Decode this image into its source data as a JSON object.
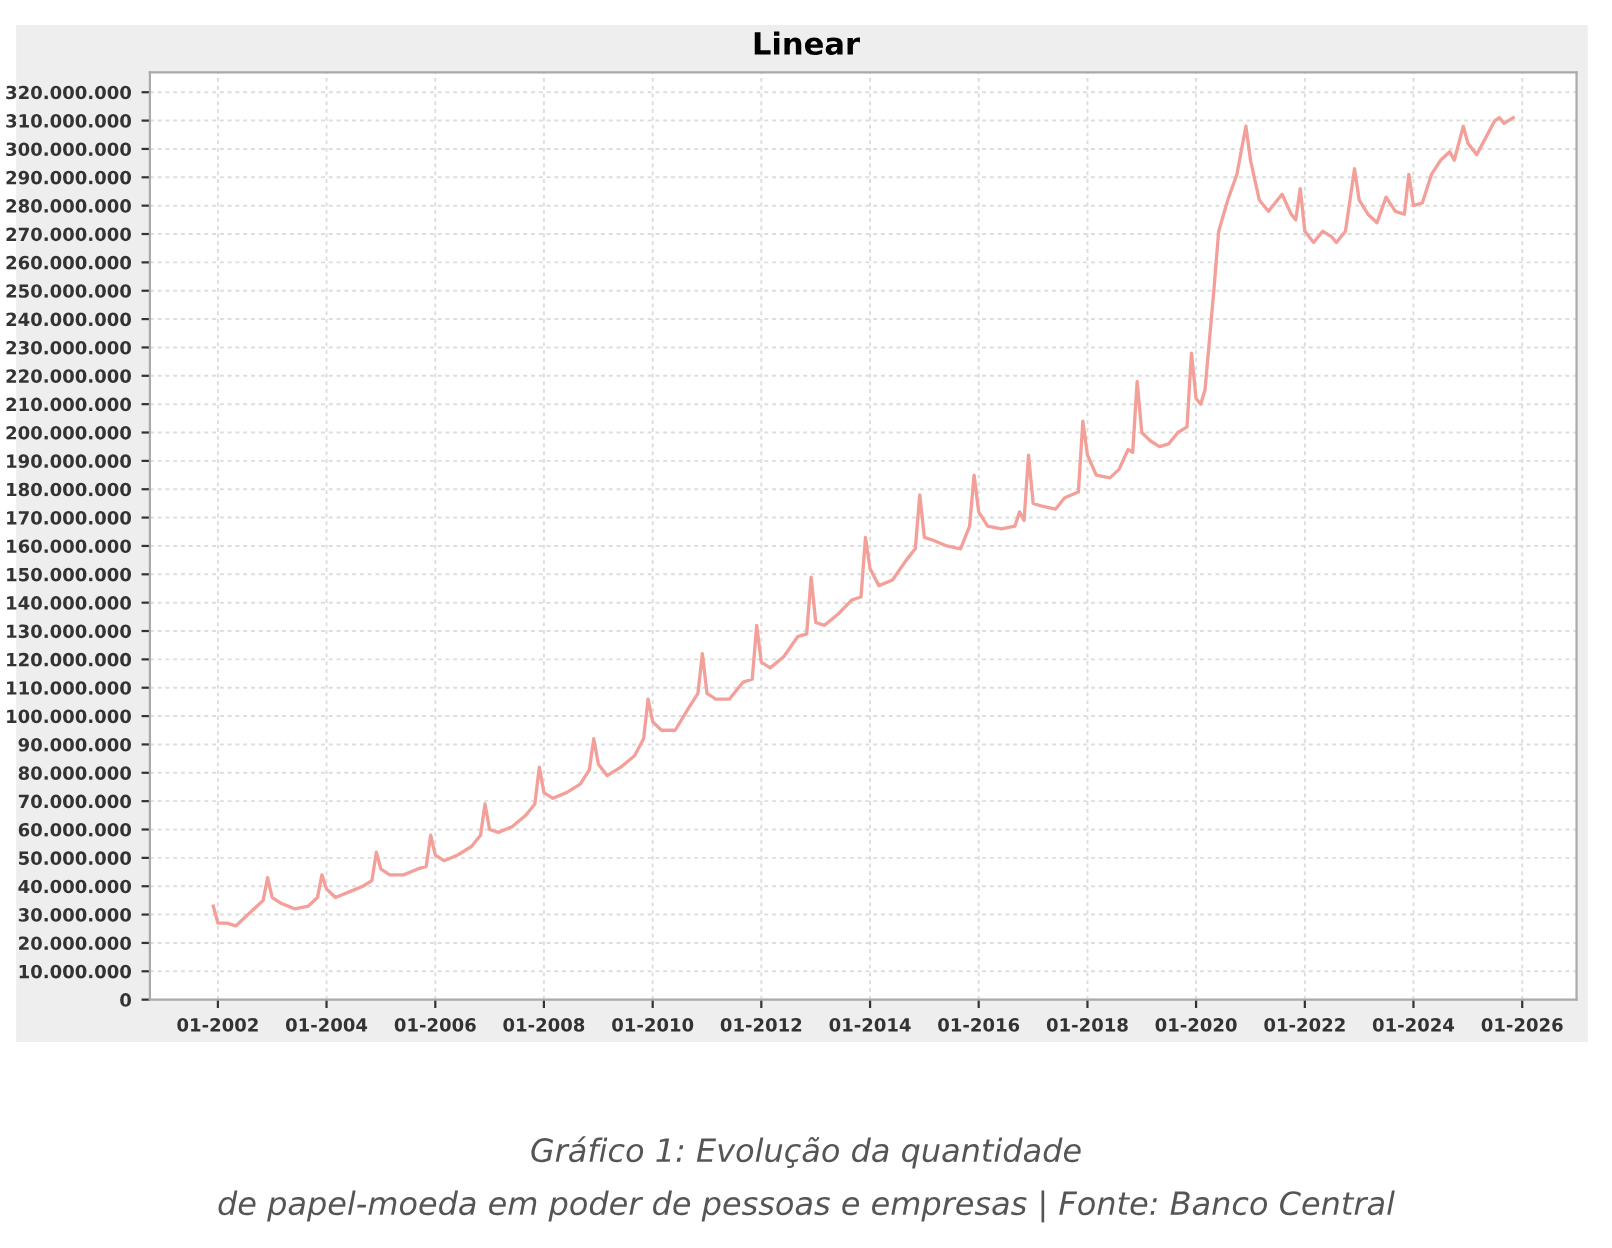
{
  "chart_data": {
    "type": "line",
    "title": "Linear",
    "x": [
      "2001-12",
      "2002-01",
      "2002-03",
      "2002-05",
      "2002-11",
      "2002-12",
      "2003-01",
      "2003-03",
      "2003-06",
      "2003-09",
      "2003-11",
      "2003-12",
      "2004-01",
      "2004-03",
      "2004-06",
      "2004-09",
      "2004-11",
      "2004-12",
      "2005-01",
      "2005-03",
      "2005-06",
      "2005-09",
      "2005-11",
      "2005-12",
      "2006-01",
      "2006-03",
      "2006-06",
      "2006-09",
      "2006-11",
      "2006-12",
      "2007-01",
      "2007-03",
      "2007-06",
      "2007-09",
      "2007-11",
      "2007-12",
      "2008-01",
      "2008-03",
      "2008-06",
      "2008-09",
      "2008-11",
      "2008-12",
      "2009-01",
      "2009-03",
      "2009-06",
      "2009-09",
      "2009-11",
      "2009-12",
      "2010-01",
      "2010-03",
      "2010-06",
      "2010-09",
      "2010-11",
      "2010-12",
      "2011-01",
      "2011-03",
      "2011-06",
      "2011-09",
      "2011-11",
      "2011-12",
      "2012-01",
      "2012-03",
      "2012-06",
      "2012-09",
      "2012-11",
      "2012-12",
      "2013-01",
      "2013-03",
      "2013-06",
      "2013-09",
      "2013-11",
      "2013-12",
      "2014-01",
      "2014-03",
      "2014-06",
      "2014-09",
      "2014-11",
      "2014-12",
      "2015-01",
      "2015-03",
      "2015-06",
      "2015-09",
      "2015-11",
      "2015-12",
      "2016-01",
      "2016-03",
      "2016-06",
      "2016-09",
      "2016-10",
      "2016-11",
      "2016-12",
      "2017-01",
      "2017-03",
      "2017-06",
      "2017-08",
      "2017-11",
      "2017-12",
      "2018-01",
      "2018-03",
      "2018-06",
      "2018-08",
      "2018-10",
      "2018-11",
      "2018-12",
      "2019-01",
      "2019-03",
      "2019-05",
      "2019-07",
      "2019-09",
      "2019-11",
      "2019-12",
      "2020-01",
      "2020-02",
      "2020-03",
      "2020-05",
      "2020-06",
      "2020-08",
      "2020-10",
      "2020-12",
      "2021-01",
      "2021-03",
      "2021-05",
      "2021-08",
      "2021-10",
      "2021-11",
      "2021-12",
      "2022-01",
      "2022-03",
      "2022-05",
      "2022-07",
      "2022-08",
      "2022-10",
      "2022-12",
      "2023-01",
      "2023-03",
      "2023-05",
      "2023-07",
      "2023-09",
      "2023-11",
      "2023-12",
      "2024-01",
      "2024-03",
      "2024-05",
      "2024-07",
      "2024-09",
      "2024-10",
      "2024-12",
      "2025-01",
      "2025-03",
      "2025-05",
      "2025-07",
      "2025-08",
      "2025-09",
      "2025-11"
    ],
    "series": [
      {
        "color": "#f4a09a",
        "values": [
          33000000,
          27000000,
          27000000,
          26000000,
          35000000,
          43000000,
          36000000,
          34000000,
          32000000,
          33000000,
          36000000,
          44000000,
          39000000,
          36000000,
          38000000,
          40000000,
          42000000,
          52000000,
          46000000,
          44000000,
          44000000,
          46000000,
          47000000,
          58000000,
          51000000,
          49000000,
          51000000,
          54000000,
          58000000,
          69000000,
          60000000,
          59000000,
          61000000,
          65000000,
          69000000,
          82000000,
          73000000,
          71000000,
          73000000,
          76000000,
          81000000,
          92000000,
          83000000,
          79000000,
          82000000,
          86000000,
          92000000,
          106000000,
          98000000,
          95000000,
          95000000,
          103000000,
          108000000,
          122000000,
          108000000,
          106000000,
          106000000,
          112000000,
          113000000,
          132000000,
          119000000,
          117000000,
          121000000,
          128000000,
          129000000,
          149000000,
          133000000,
          132000000,
          136000000,
          141000000,
          142000000,
          163000000,
          152000000,
          146000000,
          148000000,
          155000000,
          159000000,
          178000000,
          163000000,
          162000000,
          160000000,
          159000000,
          167000000,
          185000000,
          172000000,
          167000000,
          166000000,
          167000000,
          172000000,
          169000000,
          192000000,
          175000000,
          174000000,
          173000000,
          177000000,
          179000000,
          204000000,
          192000000,
          185000000,
          184000000,
          187000000,
          194000000,
          193000000,
          218000000,
          200000000,
          197000000,
          195000000,
          196000000,
          200000000,
          202000000,
          228000000,
          212000000,
          210000000,
          215000000,
          251000000,
          271000000,
          282000000,
          291000000,
          308000000,
          296000000,
          282000000,
          278000000,
          284000000,
          277000000,
          275000000,
          286000000,
          271000000,
          267000000,
          271000000,
          269000000,
          267000000,
          271000000,
          293000000,
          282000000,
          277000000,
          274000000,
          283000000,
          278000000,
          277000000,
          291000000,
          280000000,
          281000000,
          291000000,
          296000000,
          299000000,
          296000000,
          308000000,
          302000000,
          298000000,
          304000000,
          310000000,
          311000000,
          309000000,
          311000000
        ]
      }
    ],
    "xlim": [
      "2000-10",
      "2027-01"
    ],
    "xticks": [
      {
        "value": "2002-01",
        "label": "01-2002"
      },
      {
        "value": "2004-01",
        "label": "01-2004"
      },
      {
        "value": "2006-01",
        "label": "01-2006"
      },
      {
        "value": "2008-01",
        "label": "01-2008"
      },
      {
        "value": "2010-01",
        "label": "01-2010"
      },
      {
        "value": "2012-01",
        "label": "01-2012"
      },
      {
        "value": "2014-01",
        "label": "01-2014"
      },
      {
        "value": "2016-01",
        "label": "01-2016"
      },
      {
        "value": "2018-01",
        "label": "01-2018"
      },
      {
        "value": "2020-01",
        "label": "01-2020"
      },
      {
        "value": "2022-01",
        "label": "01-2022"
      },
      {
        "value": "2024-01",
        "label": "01-2024"
      },
      {
        "value": "2026-01",
        "label": "01-2026"
      }
    ],
    "ylim": [
      0,
      327000000
    ],
    "yticks": [
      0,
      {
        "value": 10000000,
        "label": "10.000.000"
      },
      {
        "value": 20000000,
        "label": "20.000.000"
      },
      {
        "value": 30000000,
        "label": "30.000.000"
      },
      {
        "value": 40000000,
        "label": "40.000.000"
      },
      {
        "value": 50000000,
        "label": "50.000.000"
      },
      {
        "value": 60000000,
        "label": "60.000.000"
      },
      {
        "value": 70000000,
        "label": "70.000.000"
      },
      {
        "value": 80000000,
        "label": "80.000.000"
      },
      {
        "value": 90000000,
        "label": "90.000.000"
      },
      {
        "value": 100000000,
        "label": "100.000.000"
      },
      {
        "value": 110000000,
        "label": "110.000.000"
      },
      {
        "value": 120000000,
        "label": "120.000.000"
      },
      {
        "value": 130000000,
        "label": "130.000.000"
      },
      {
        "value": 140000000,
        "label": "140.000.000"
      },
      {
        "value": 150000000,
        "label": "150.000.000"
      },
      {
        "value": 160000000,
        "label": "160.000.000"
      },
      {
        "value": 170000000,
        "label": "170.000.000"
      },
      {
        "value": 180000000,
        "label": "180.000.000"
      },
      {
        "value": 190000000,
        "label": "190.000.000"
      },
      {
        "value": 200000000,
        "label": "200.000.000"
      },
      {
        "value": 210000000,
        "label": "210.000.000"
      },
      {
        "value": 220000000,
        "label": "220.000.000"
      },
      {
        "value": 230000000,
        "label": "230.000.000"
      },
      {
        "value": 240000000,
        "label": "240.000.000"
      },
      {
        "value": 250000000,
        "label": "250.000.000"
      },
      {
        "value": 260000000,
        "label": "260.000.000"
      },
      {
        "value": 270000000,
        "label": "270.000.000"
      },
      {
        "value": 280000000,
        "label": "280.000.000"
      },
      {
        "value": 290000000,
        "label": "290.000.000"
      },
      {
        "value": 300000000,
        "label": "300.000.000"
      },
      {
        "value": 310000000,
        "label": "310.000.000"
      },
      {
        "value": 320000000,
        "label": "320.000.000"
      }
    ],
    "grid": true,
    "annotations": [
      "Gráfico 1: Evolução da quantidade\nde papel-moeda em poder de pessoas e empresas | Fonte: Banco Central"
    ]
  }
}
